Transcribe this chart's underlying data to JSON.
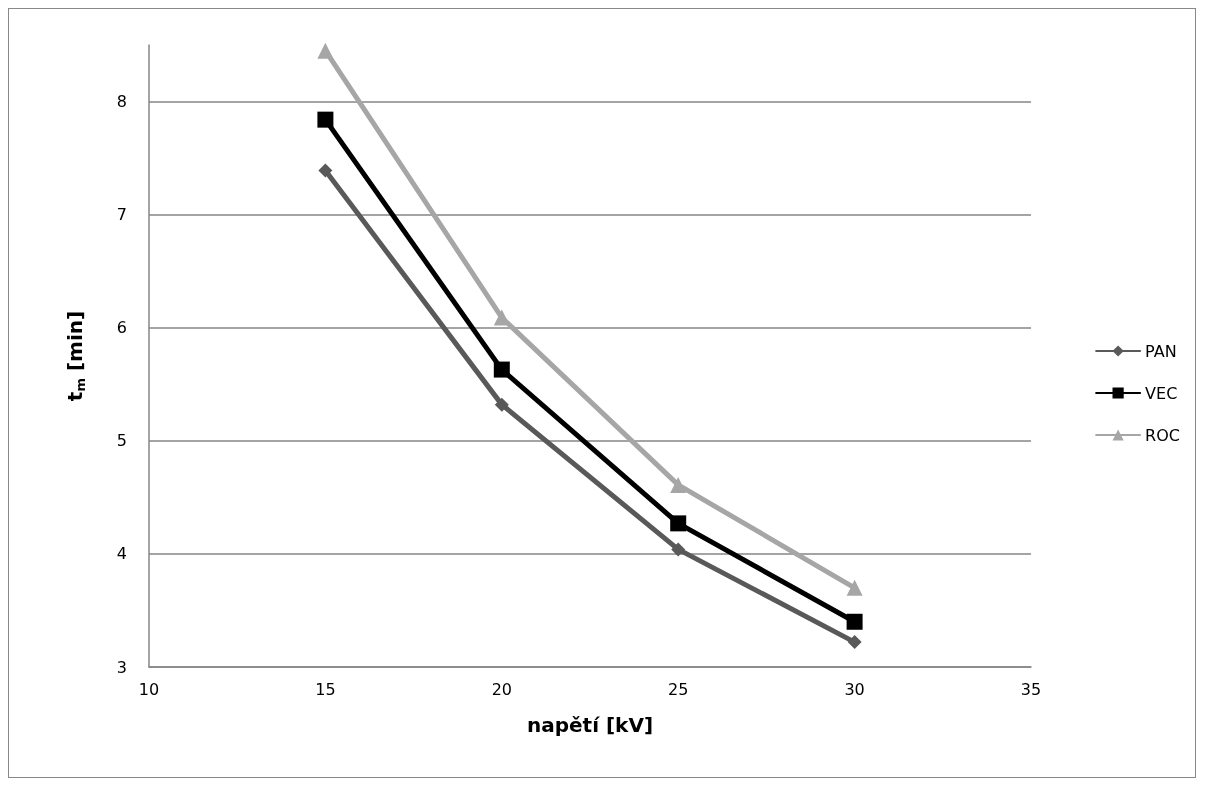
{
  "chart_data": {
    "type": "line",
    "xlabel": "napětí [kV]",
    "ylabel": "t$_{m}$ [min]",
    "x": [
      15,
      20,
      25,
      30
    ],
    "series": [
      {
        "name": "PAN",
        "color": "#595959",
        "marker": "diamond",
        "values": [
          7.39,
          5.32,
          4.04,
          3.22
        ]
      },
      {
        "name": "VEC",
        "color": "#000000",
        "marker": "square",
        "values": [
          7.84,
          5.63,
          4.27,
          3.4
        ]
      },
      {
        "name": "ROC",
        "color": "#a6a6a6",
        "marker": "triangle",
        "values": [
          8.45,
          6.09,
          4.61,
          3.7
        ]
      }
    ],
    "xlim": [
      10,
      35
    ],
    "xticks": [
      10,
      15,
      20,
      25,
      30,
      35
    ],
    "ylim": [
      3,
      8.5
    ],
    "yticks": [
      3,
      4,
      5,
      6,
      7,
      8
    ],
    "grid": "y",
    "legend": "right",
    "line_style": "solid"
  }
}
